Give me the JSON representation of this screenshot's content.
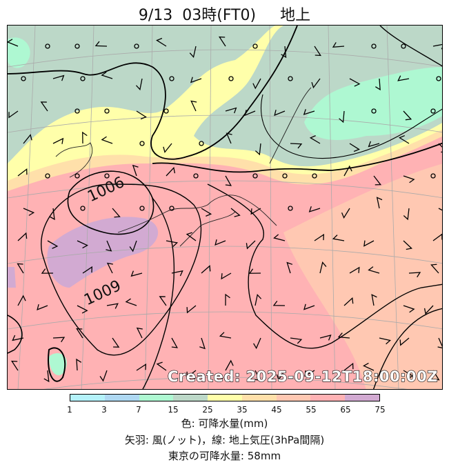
{
  "title": "9/13  03時(FT0)     地上",
  "created": "Created: 2025-09-12T18:00:00Z",
  "contour_labels": [
    "1006",
    "1009"
  ],
  "colorbar": {
    "ticks": [
      "1",
      "3",
      "7",
      "15",
      "25",
      "35",
      "45",
      "55",
      "65",
      "75"
    ],
    "colors": [
      "#b4f2fa",
      "#aed8f2",
      "#aef8d2",
      "#bcd8c8",
      "#ffffaa",
      "#ffe0aa",
      "#ffc8b2",
      "#ffb2b4",
      "#d2aad2"
    ]
  },
  "captions": {
    "color": "色: 可降水量(mm)",
    "barbs": "矢羽: 風(ノット)，線: 地上気圧(3hPa間隔)",
    "tokyo": "東京の可降水量: 58mm"
  }
}
